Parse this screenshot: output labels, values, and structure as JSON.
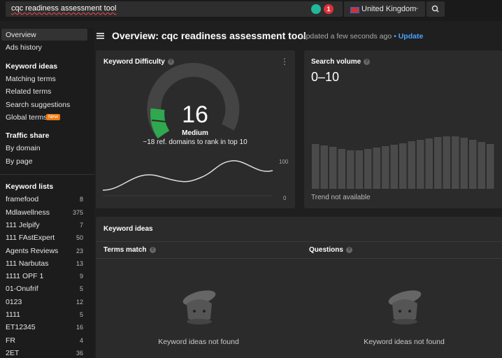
{
  "search": {
    "query": "cqc readiness assessment tool",
    "badge": "1",
    "country": "United Kingdom"
  },
  "sidebar": {
    "top_items": [
      "Overview",
      "Ads history"
    ],
    "sections": [
      {
        "title": "Keyword ideas",
        "items": [
          {
            "label": "Matching terms"
          },
          {
            "label": "Related terms"
          },
          {
            "label": "Search suggestions"
          },
          {
            "label": "Global terms",
            "tag": "New"
          }
        ]
      },
      {
        "title": "Traffic share",
        "items": [
          {
            "label": "By domain"
          },
          {
            "label": "By page"
          }
        ]
      }
    ],
    "keyword_lists": {
      "title": "Keyword lists",
      "items": [
        {
          "name": "framefood",
          "count": 8
        },
        {
          "name": "Mdlawellness",
          "count": 375
        },
        {
          "name": "111 Jelpify",
          "count": 7
        },
        {
          "name": "111 FAstExpert",
          "count": 50
        },
        {
          "name": "Agents Reviews",
          "count": 23
        },
        {
          "name": "111 Narbutas",
          "count": 13
        },
        {
          "name": "1111 OPF 1",
          "count": 9
        },
        {
          "name": "01-Onufrif",
          "count": 5
        },
        {
          "name": "0123",
          "count": 12
        },
        {
          "name": "1111",
          "count": 5
        },
        {
          "name": "ET12345",
          "count": 16
        },
        {
          "name": "FR",
          "count": 4
        },
        {
          "name": "2ET",
          "count": 36
        }
      ]
    }
  },
  "header": {
    "title": "Overview: cqc readiness assessment tool",
    "status": "Updated a few seconds ago",
    "separator": "•",
    "link": "Update"
  },
  "keyword_difficulty": {
    "title": "Keyword Difficulty",
    "score": 16,
    "level": "Medium",
    "note": "~18 ref. domains to rank in top 10",
    "axis_labels": [
      100,
      0
    ]
  },
  "search_volume": {
    "title": "Search volume",
    "value": "0–10",
    "note": "Trend not available"
  },
  "keyword_ideas": {
    "title": "Keyword ideas",
    "columns": [
      {
        "title": "Terms match",
        "empty": "Keyword ideas not found"
      },
      {
        "title": "Questions",
        "empty": "Keyword ideas not found"
      }
    ]
  }
}
